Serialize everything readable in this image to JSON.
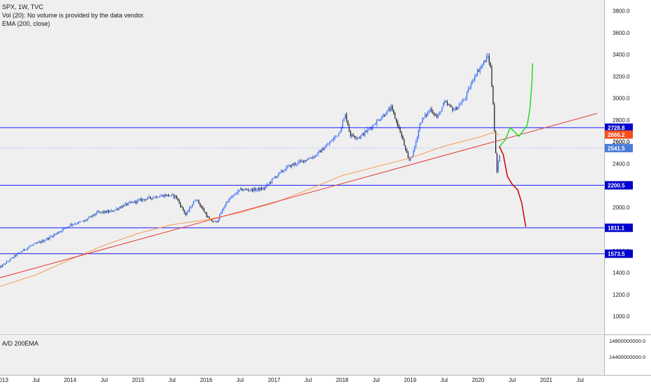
{
  "header": {
    "symbol": "SPX, 1W, TVC",
    "volume_note": "Vol (20): No volume is provided by the data vendor.",
    "ema_label": "EMA (200, close)",
    "indicator_label": "A/D 200EMA"
  },
  "colors": {
    "candle_up": "#2962ff",
    "candle_down": "#131722",
    "ema": "#f7a35c",
    "trendline": "#e53935",
    "hline": "#1a1aff",
    "bull_projection": "#22dd22",
    "bear_projection": "#cc0000",
    "chart_bg": "#efefef"
  },
  "chart_data": {
    "type": "candlestick",
    "title": "SPX, 1W, TVC",
    "ylim": [
      800,
      3900
    ],
    "x_range": [
      "2013",
      "2021-08"
    ],
    "grid": false,
    "y_ticks": [
      1000,
      1200,
      1400,
      1600,
      1800,
      2000,
      2200,
      2400,
      2600,
      2800,
      3000,
      3200,
      3400,
      3600,
      3800
    ],
    "y_tick_labels": [
      "1000.0",
      "1200.0",
      "1400.0",
      "1600.0",
      "1800.0",
      "2000.0",
      "2200.0",
      "2400.0",
      "2600.0",
      "2800.0",
      "3000.0",
      "3200.0",
      "3400.0",
      "3600.0",
      "3800.0"
    ],
    "x_ticks": [
      {
        "label": "2013",
        "t": 2013.0
      },
      {
        "label": "Jul",
        "t": 2013.5
      },
      {
        "label": "2014",
        "t": 2014.0
      },
      {
        "label": "Jul",
        "t": 2014.5
      },
      {
        "label": "2015",
        "t": 2015.0
      },
      {
        "label": "Jul",
        "t": 2015.5
      },
      {
        "label": "2016",
        "t": 2016.0
      },
      {
        "label": "Jul",
        "t": 2016.5
      },
      {
        "label": "2017",
        "t": 2017.0
      },
      {
        "label": "Jul",
        "t": 2017.5
      },
      {
        "label": "2018",
        "t": 2018.0
      },
      {
        "label": "Jul",
        "t": 2018.5
      },
      {
        "label": "2019",
        "t": 2019.0
      },
      {
        "label": "Jul",
        "t": 2019.5
      },
      {
        "label": "2020",
        "t": 2020.0
      },
      {
        "label": "Jul",
        "t": 2020.5
      },
      {
        "label": "2021",
        "t": 2021.0
      },
      {
        "label": "Jul",
        "t": 2021.5
      }
    ],
    "price_path": [
      [
        2012.95,
        1440
      ],
      [
        2013.2,
        1560
      ],
      [
        2013.4,
        1640
      ],
      [
        2013.6,
        1690
      ],
      [
        2013.8,
        1760
      ],
      [
        2014.0,
        1840
      ],
      [
        2014.2,
        1870
      ],
      [
        2014.4,
        1950
      ],
      [
        2014.6,
        1960
      ],
      [
        2014.8,
        2020
      ],
      [
        2015.0,
        2060
      ],
      [
        2015.2,
        2090
      ],
      [
        2015.4,
        2110
      ],
      [
        2015.55,
        2100
      ],
      [
        2015.7,
        1930
      ],
      [
        2015.85,
        2080
      ],
      [
        2016.05,
        1880
      ],
      [
        2016.15,
        1860
      ],
      [
        2016.3,
        2050
      ],
      [
        2016.5,
        2160
      ],
      [
        2016.7,
        2160
      ],
      [
        2016.85,
        2170
      ],
      [
        2017.0,
        2270
      ],
      [
        2017.2,
        2370
      ],
      [
        2017.4,
        2420
      ],
      [
        2017.6,
        2470
      ],
      [
        2017.8,
        2580
      ],
      [
        2017.95,
        2680
      ],
      [
        2018.05,
        2850
      ],
      [
        2018.12,
        2660
      ],
      [
        2018.25,
        2640
      ],
      [
        2018.4,
        2720
      ],
      [
        2018.6,
        2840
      ],
      [
        2018.72,
        2910
      ],
      [
        2018.85,
        2700
      ],
      [
        2018.98,
        2420
      ],
      [
        2019.05,
        2510
      ],
      [
        2019.15,
        2780
      ],
      [
        2019.3,
        2900
      ],
      [
        2019.4,
        2820
      ],
      [
        2019.5,
        2960
      ],
      [
        2019.65,
        2890
      ],
      [
        2019.8,
        2990
      ],
      [
        2019.95,
        3210
      ],
      [
        2020.1,
        3340
      ],
      [
        2020.14,
        3390
      ],
      [
        2020.18,
        3280
      ],
      [
        2020.22,
        2950
      ],
      [
        2020.25,
        2550
      ],
      [
        2020.28,
        2300
      ],
      [
        2020.31,
        2490
      ]
    ],
    "ema_200": [
      [
        2012.95,
        1270
      ],
      [
        2013.5,
        1380
      ],
      [
        2014.0,
        1520
      ],
      [
        2014.5,
        1650
      ],
      [
        2015.0,
        1760
      ],
      [
        2015.5,
        1840
      ],
      [
        2016.0,
        1885
      ],
      [
        2016.5,
        1950
      ],
      [
        2017.0,
        2040
      ],
      [
        2017.5,
        2160
      ],
      [
        2018.0,
        2290
      ],
      [
        2018.5,
        2370
      ],
      [
        2019.0,
        2450
      ],
      [
        2019.5,
        2560
      ],
      [
        2020.0,
        2640
      ],
      [
        2020.2,
        2680
      ],
      [
        2020.31,
        2666.2
      ]
    ],
    "trendline": [
      [
        2012.95,
        1350
      ],
      [
        2021.75,
        2860
      ]
    ],
    "horizontal_levels": [
      {
        "value": 2728.8,
        "label": "2728.8",
        "style": "solid"
      },
      {
        "value": 2541.5,
        "label": "2541.5",
        "style": "dotted"
      },
      {
        "value": 2200.5,
        "label": "2200.5",
        "style": "solid"
      },
      {
        "value": 1811.1,
        "label": "1811.1",
        "style": "solid"
      },
      {
        "value": 1573.5,
        "label": "1573.5",
        "style": "solid"
      }
    ],
    "price_labels": [
      {
        "value": 2666.2,
        "label": "2666.2",
        "kind": "ema"
      },
      {
        "value": 2600.0,
        "label": "2600.0",
        "kind": "axis"
      }
    ],
    "projections": [
      {
        "kind": "bullish",
        "points": [
          [
            2020.31,
            2550
          ],
          [
            2020.4,
            2620
          ],
          [
            2020.47,
            2730
          ],
          [
            2020.6,
            2650
          ],
          [
            2020.72,
            2750
          ],
          [
            2020.76,
            2900
          ],
          [
            2020.79,
            3140
          ],
          [
            2020.8,
            3320
          ]
        ]
      },
      {
        "kind": "bearish",
        "points": [
          [
            2020.31,
            2560
          ],
          [
            2020.37,
            2480
          ],
          [
            2020.43,
            2280
          ],
          [
            2020.5,
            2210
          ],
          [
            2020.58,
            2160
          ],
          [
            2020.64,
            2040
          ],
          [
            2020.68,
            1890
          ],
          [
            2020.7,
            1820
          ]
        ]
      }
    ],
    "indicator": {
      "name": "A/D 200EMA",
      "y_ticks": [
        "14800000000.0",
        "14400000000.0"
      ]
    }
  }
}
